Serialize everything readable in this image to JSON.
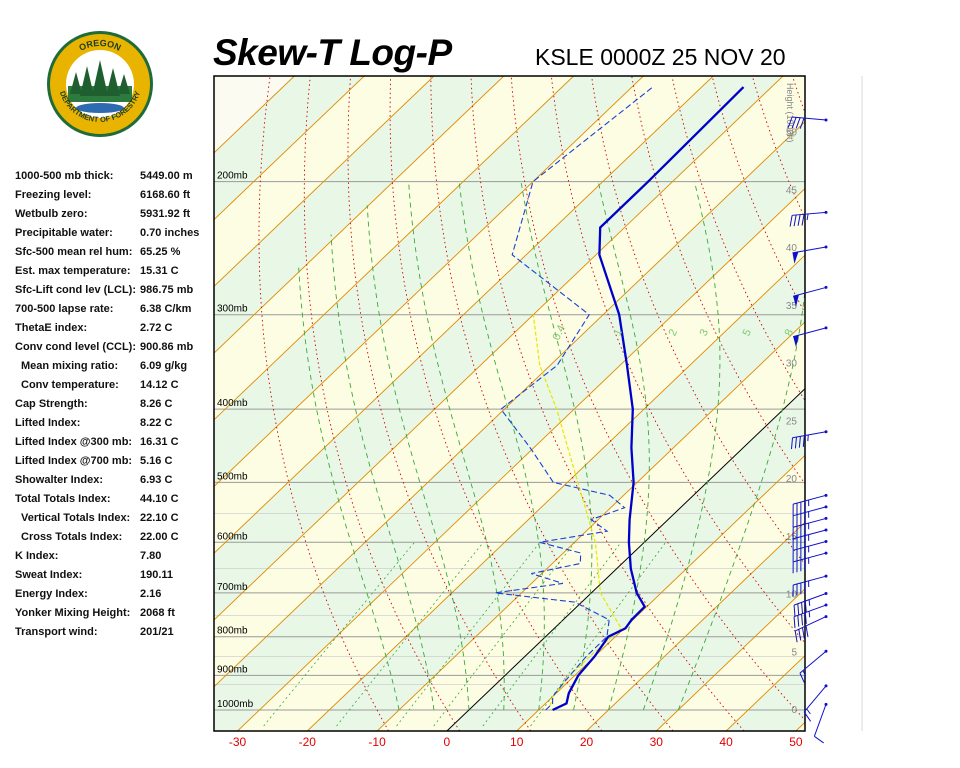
{
  "header": {
    "title": "Skew-T Log-P",
    "station": "KSLE 0000Z 25 NOV 20"
  },
  "logo": {
    "top_text": "OREGON",
    "ring_text": "DEPARTMENT OF FORESTRY"
  },
  "stats": [
    {
      "label": "1000-500 mb thick:",
      "value": "5449.00 m"
    },
    {
      "label": "Freezing level:",
      "value": "6168.60 ft"
    },
    {
      "label": "Wetbulb zero:",
      "value": "5931.92 ft"
    },
    {
      "label": "Precipitable water:",
      "value": "0.70 inches"
    },
    {
      "label": "Sfc-500 mean rel hum:",
      "value": "65.25 %"
    },
    {
      "label": "Est. max temperature:",
      "value": "15.31 C"
    },
    {
      "label": "Sfc-Lift cond lev (LCL):",
      "value": "986.75 mb"
    },
    {
      "label": "700-500 lapse rate:",
      "value": "6.38 C/km"
    },
    {
      "label": "ThetaE index:",
      "value": "2.72 C"
    },
    {
      "label": "Conv cond level (CCL):",
      "value": "900.86 mb"
    },
    {
      "label": "Mean mixing ratio:",
      "value": "6.09 g/kg"
    },
    {
      "label": "Conv temperature:",
      "value": "14.12 C"
    },
    {
      "label": "Cap Strength:",
      "value": "8.26 C"
    },
    {
      "label": "Lifted Index:",
      "value": "8.22 C"
    },
    {
      "label": "Lifted Index @300 mb:",
      "value": "16.31 C"
    },
    {
      "label": "Lifted Index @700 mb:",
      "value": "5.16 C"
    },
    {
      "label": "Showalter Index:",
      "value": "6.93 C"
    },
    {
      "label": "Total Totals Index:",
      "value": "44.10 C"
    },
    {
      "label": "Vertical Totals Index:",
      "value": "22.10 C"
    },
    {
      "label": "Cross Totals Index:",
      "value": "22.00 C"
    },
    {
      "label": "K Index:",
      "value": "7.80"
    },
    {
      "label": "Sweat Index:",
      "value": "190.11"
    },
    {
      "label": "Energy Index:",
      "value": "2.16"
    },
    {
      "label": "Yonker Mixing Height:",
      "value": "2068 ft"
    },
    {
      "label": "Transport wind:",
      "value": "201/21"
    }
  ],
  "chart_data": {
    "type": "line",
    "title": "Skew-T Log-P",
    "subtitle": "KSLE 0000Z 25 NOV 20",
    "xlabel": "",
    "ylabel": "",
    "x_range_C": [
      -30,
      50
    ],
    "x_ticks": [
      "-30",
      "-20",
      "-10",
      "0",
      "10",
      "20",
      "30",
      "40",
      "50"
    ],
    "pressure_labels": [
      "200mb",
      "300mb",
      "400mb",
      "500mb",
      "600mb",
      "700mb",
      "800mb",
      "900mb",
      "1000mb"
    ],
    "height_axis_label": "Height (1000ft)",
    "height_ticks": [
      "0",
      "5",
      "10",
      "15",
      "20",
      "25",
      "30",
      "35",
      "40",
      "45",
      "50"
    ],
    "mixing_ratio_labels": [
      "0.4",
      "1",
      "2",
      "3",
      "5",
      "8"
    ],
    "colors": {
      "temperature": "#0000cc",
      "dewpoint": "#1a3fd6",
      "parcel": "#e6e600",
      "isotherm": "#e08a00",
      "dry_adiabat": "#d00000",
      "moist_adiabat": "#3aa83a",
      "zero_isotherm": "#000000",
      "x_tick_label": "#e00000",
      "height_label": "#888888",
      "wind_barb": "#1010cc"
    },
    "series": [
      {
        "key": "temperature",
        "points": [
          {
            "p": 1000,
            "t": 12.0
          },
          {
            "p": 980,
            "t": 13.0
          },
          {
            "p": 950,
            "t": 11.8
          },
          {
            "p": 900,
            "t": 10.5
          },
          {
            "p": 850,
            "t": 10.0
          },
          {
            "p": 800,
            "t": 9.0
          },
          {
            "p": 780,
            "t": 10.2
          },
          {
            "p": 760,
            "t": 9.8
          },
          {
            "p": 730,
            "t": 9.7
          },
          {
            "p": 700,
            "t": 6.5
          },
          {
            "p": 650,
            "t": 2.0
          },
          {
            "p": 600,
            "t": -2.2
          },
          {
            "p": 560,
            "t": -5.5
          },
          {
            "p": 500,
            "t": -10.5
          },
          {
            "p": 450,
            "t": -16.0
          },
          {
            "p": 400,
            "t": -21.6
          },
          {
            "p": 350,
            "t": -29.0
          },
          {
            "p": 300,
            "t": -37.7
          },
          {
            "p": 250,
            "t": -49.5
          },
          {
            "p": 230,
            "t": -53.5
          },
          {
            "p": 200,
            "t": -53.5
          },
          {
            "p": 150,
            "t": -54.0
          }
        ]
      },
      {
        "key": "dewpoint",
        "points": [
          {
            "p": 1000,
            "t": 11.0
          },
          {
            "p": 980,
            "t": 11.0
          },
          {
            "p": 960,
            "t": 10.0
          },
          {
            "p": 920,
            "t": 9.5
          },
          {
            "p": 850,
            "t": 8.8
          },
          {
            "p": 800,
            "t": 8.8
          },
          {
            "p": 760,
            "t": 6.6
          },
          {
            "p": 720,
            "t": -1.0
          },
          {
            "p": 700,
            "t": -13.8
          },
          {
            "p": 680,
            "t": -5.5
          },
          {
            "p": 660,
            "t": -11.5
          },
          {
            "p": 640,
            "t": -6.0
          },
          {
            "p": 620,
            "t": -7.5
          },
          {
            "p": 600,
            "t": -15.0
          },
          {
            "p": 580,
            "t": -7.0
          },
          {
            "p": 560,
            "t": -11.0
          },
          {
            "p": 540,
            "t": -8.0
          },
          {
            "p": 520,
            "t": -12.0
          },
          {
            "p": 500,
            "t": -22.0
          },
          {
            "p": 450,
            "t": -30.5
          },
          {
            "p": 400,
            "t": -40.5
          },
          {
            "p": 350,
            "t": -39.0
          },
          {
            "p": 300,
            "t": -42.0
          },
          {
            "p": 250,
            "t": -62.0
          },
          {
            "p": 200,
            "t": -70.0
          },
          {
            "p": 150,
            "t": -67.0
          }
        ]
      },
      {
        "key": "parcel",
        "points": [
          {
            "p": 987,
            "t": 11.0
          },
          {
            "p": 960,
            "t": 10.0
          },
          {
            "p": 900,
            "t": 9.3
          },
          {
            "p": 850,
            "t": 9.3
          },
          {
            "p": 780,
            "t": 9.6
          },
          {
            "p": 700,
            "t": 1.3
          },
          {
            "p": 600,
            "t": -7.0
          },
          {
            "p": 500,
            "t": -18.5
          },
          {
            "p": 400,
            "t": -32.5
          },
          {
            "p": 350,
            "t": -41.5
          },
          {
            "p": 300,
            "t": -50.0
          }
        ]
      }
    ],
    "wind_barbs": [
      {
        "height_kft": 0.4,
        "dir_deg": 200,
        "speed_kt": 10
      },
      {
        "height_kft": 2,
        "dir_deg": 220,
        "speed_kt": 15
      },
      {
        "height_kft": 5,
        "dir_deg": 230,
        "speed_kt": 15
      },
      {
        "height_kft": 8,
        "dir_deg": 245,
        "speed_kt": 40
      },
      {
        "height_kft": 9,
        "dir_deg": 250,
        "speed_kt": 45
      },
      {
        "height_kft": 10,
        "dir_deg": 250,
        "speed_kt": 45
      },
      {
        "height_kft": 11.5,
        "dir_deg": 255,
        "speed_kt": 45
      },
      {
        "height_kft": 13.5,
        "dir_deg": 255,
        "speed_kt": 45
      },
      {
        "height_kft": 14.5,
        "dir_deg": 255,
        "speed_kt": 45
      },
      {
        "height_kft": 15.5,
        "dir_deg": 255,
        "speed_kt": 45
      },
      {
        "height_kft": 16.5,
        "dir_deg": 255,
        "speed_kt": 45
      },
      {
        "height_kft": 17.5,
        "dir_deg": 255,
        "speed_kt": 45
      },
      {
        "height_kft": 18.5,
        "dir_deg": 255,
        "speed_kt": 45
      },
      {
        "height_kft": 24,
        "dir_deg": 260,
        "speed_kt": 45
      },
      {
        "height_kft": 33,
        "dir_deg": 255,
        "speed_kt": 50
      },
      {
        "height_kft": 36.5,
        "dir_deg": 255,
        "speed_kt": 50
      },
      {
        "height_kft": 40,
        "dir_deg": 260,
        "speed_kt": 50
      },
      {
        "height_kft": 43,
        "dir_deg": 265,
        "speed_kt": 45
      },
      {
        "height_kft": 51,
        "dir_deg": 275,
        "speed_kt": 40
      }
    ]
  }
}
